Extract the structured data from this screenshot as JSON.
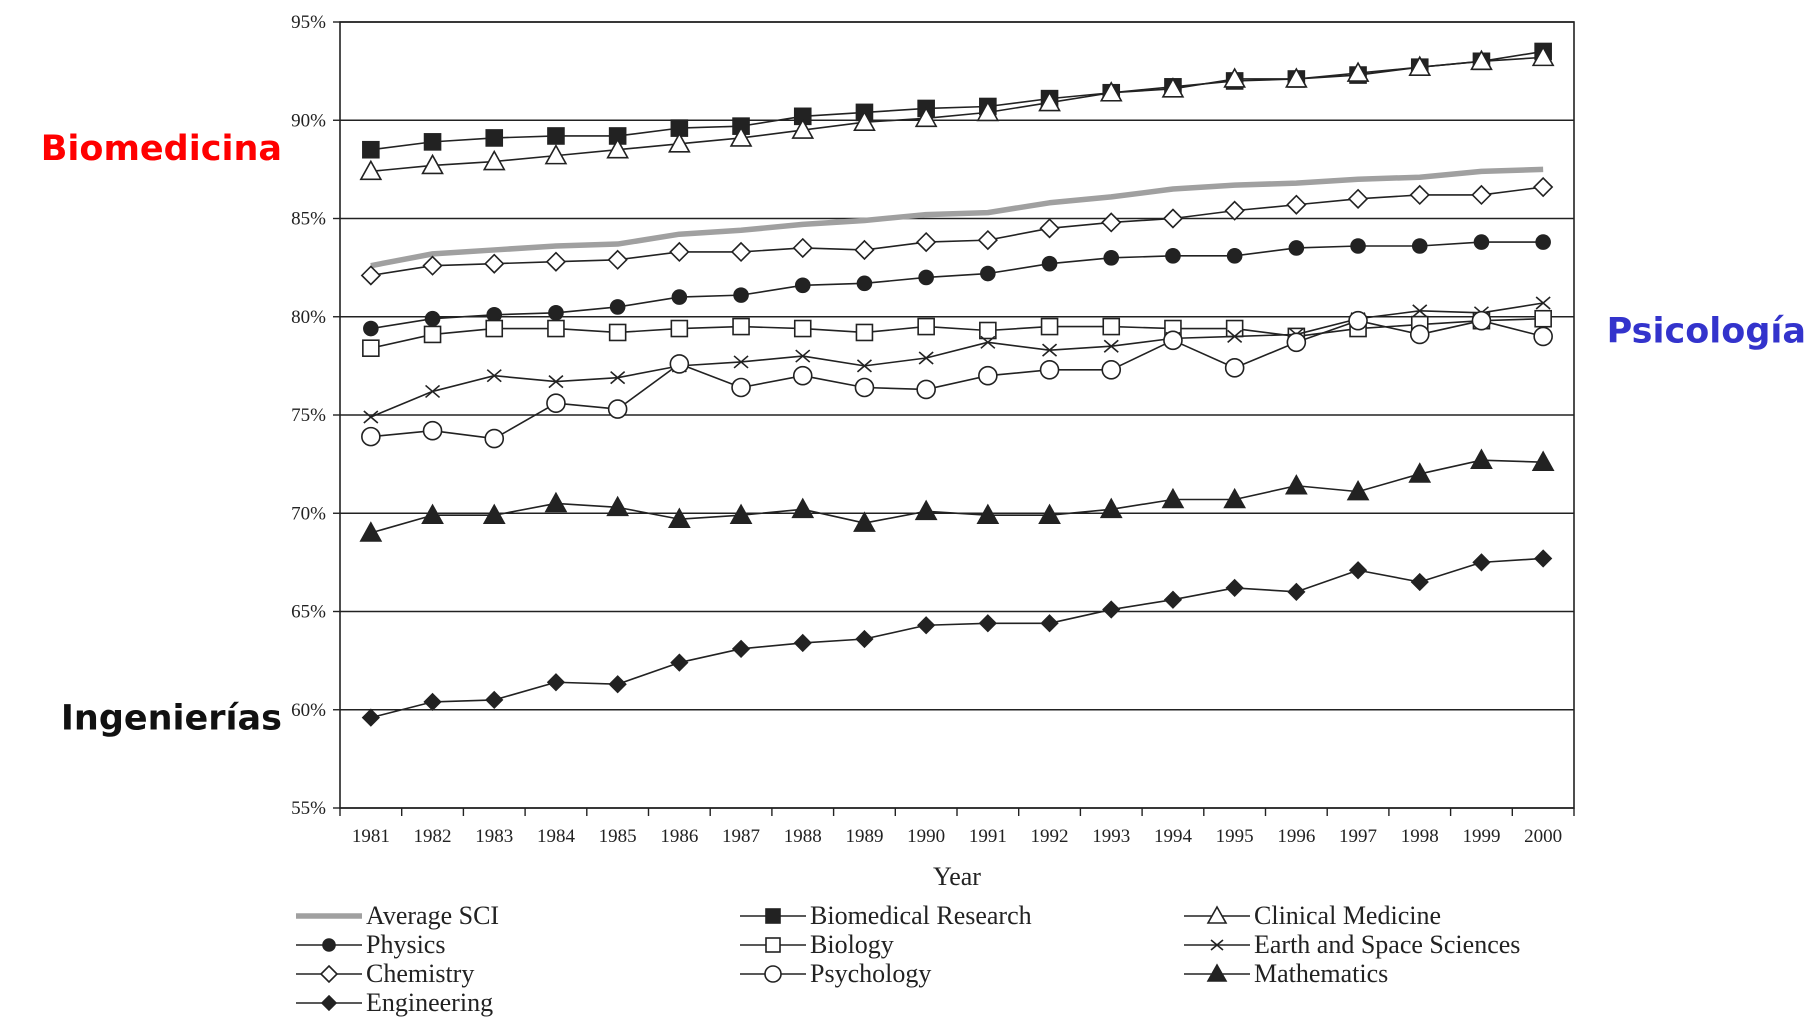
{
  "chart_data": {
    "type": "line",
    "xlabel": "Year",
    "ylabel": "",
    "ylim": [
      55,
      95
    ],
    "yticks": [
      55,
      60,
      65,
      70,
      75,
      80,
      85,
      90,
      95
    ],
    "ytick_labels": [
      "55%",
      "60%",
      "65%",
      "70%",
      "75%",
      "80%",
      "85%",
      "90%",
      "95%"
    ],
    "grid": "horizontal",
    "legend_placement": "bottom",
    "x": [
      1981,
      1982,
      1983,
      1984,
      1985,
      1986,
      1987,
      1988,
      1989,
      1990,
      1991,
      1992,
      1993,
      1994,
      1995,
      1996,
      1997,
      1998,
      1999,
      2000
    ],
    "xtick_labels": [
      "1981",
      "1982",
      "1983",
      "1984",
      "1985",
      "1986",
      "1987",
      "1988",
      "1989",
      "1990",
      "1991",
      "1992",
      "1993",
      "1994",
      "1995",
      "1996",
      "1997",
      "1998",
      "1999",
      "2000"
    ],
    "series": [
      {
        "name": "Average SCI",
        "marker": "none",
        "color": "#a0a0a0",
        "values": [
          82.6,
          83.2,
          83.4,
          83.6,
          83.7,
          84.2,
          84.4,
          84.7,
          84.9,
          85.2,
          85.3,
          85.8,
          86.1,
          86.5,
          86.7,
          86.8,
          87.0,
          87.1,
          87.4,
          87.5
        ]
      },
      {
        "name": "Biomedical Research",
        "marker": "square-filled",
        "color": "#222222",
        "values": [
          88.5,
          88.9,
          89.1,
          89.2,
          89.2,
          89.6,
          89.7,
          90.2,
          90.4,
          90.6,
          90.7,
          91.1,
          91.4,
          91.7,
          92.0,
          92.1,
          92.3,
          92.7,
          93.0,
          93.5
        ]
      },
      {
        "name": "Clinical Medicine",
        "marker": "triangle-open",
        "color": "#222222",
        "values": [
          87.4,
          87.7,
          87.9,
          88.2,
          88.5,
          88.8,
          89.1,
          89.5,
          89.9,
          90.1,
          90.4,
          90.9,
          91.4,
          91.6,
          92.1,
          92.1,
          92.4,
          92.7,
          93.0,
          93.2
        ]
      },
      {
        "name": "Physics",
        "marker": "circle-filled",
        "color": "#222222",
        "values": [
          79.4,
          79.9,
          80.1,
          80.2,
          80.5,
          81.0,
          81.1,
          81.6,
          81.7,
          82.0,
          82.2,
          82.7,
          83.0,
          83.1,
          83.1,
          83.5,
          83.6,
          83.6,
          83.8,
          83.8
        ]
      },
      {
        "name": "Biology",
        "marker": "square-open",
        "color": "#222222",
        "values": [
          78.4,
          79.1,
          79.4,
          79.4,
          79.2,
          79.4,
          79.5,
          79.4,
          79.2,
          79.5,
          79.3,
          79.5,
          79.5,
          79.4,
          79.4,
          79.0,
          79.4,
          79.6,
          79.8,
          79.9
        ]
      },
      {
        "name": "Earth and Space Sciences",
        "marker": "x",
        "color": "#222222",
        "values": [
          74.9,
          76.2,
          77.0,
          76.7,
          76.9,
          77.5,
          77.7,
          78.0,
          77.5,
          77.9,
          78.7,
          78.3,
          78.5,
          78.9,
          79.0,
          79.1,
          79.9,
          80.3,
          80.2,
          80.7
        ]
      },
      {
        "name": "Chemistry",
        "marker": "diamond-open",
        "color": "#222222",
        "values": [
          82.1,
          82.6,
          82.7,
          82.8,
          82.9,
          83.3,
          83.3,
          83.5,
          83.4,
          83.8,
          83.9,
          84.5,
          84.8,
          85.0,
          85.4,
          85.7,
          86.0,
          86.2,
          86.2,
          86.6
        ]
      },
      {
        "name": "Psychology",
        "marker": "circle-open",
        "color": "#222222",
        "values": [
          73.9,
          74.2,
          73.8,
          75.6,
          75.3,
          77.6,
          76.4,
          77.0,
          76.4,
          76.3,
          77.0,
          77.3,
          77.3,
          78.8,
          77.4,
          78.7,
          79.8,
          79.1,
          79.8,
          79.0
        ]
      },
      {
        "name": "Mathematics",
        "marker": "triangle-filled",
        "color": "#222222",
        "values": [
          69.0,
          69.9,
          69.9,
          70.5,
          70.3,
          69.7,
          69.9,
          70.2,
          69.5,
          70.1,
          69.9,
          69.9,
          70.2,
          70.7,
          70.7,
          71.4,
          71.1,
          72.0,
          72.7,
          72.6
        ]
      },
      {
        "name": "Engineering",
        "marker": "diamond-filled",
        "color": "#222222",
        "values": [
          59.6,
          60.4,
          60.5,
          61.4,
          61.3,
          62.4,
          63.1,
          63.4,
          63.6,
          64.3,
          64.4,
          64.4,
          65.1,
          65.6,
          66.2,
          66.0,
          67.1,
          66.5,
          67.5,
          67.7
        ]
      }
    ],
    "annotations": [
      {
        "text": "Biomedicina",
        "color": "#ff0000",
        "side": "left",
        "near_value": 88.6
      },
      {
        "text": "Psicología",
        "color": "#3333cc",
        "side": "right",
        "near_value": 79.3
      },
      {
        "text": "Ingenierías",
        "color": "#111111",
        "side": "left",
        "near_value": 59.6
      }
    ]
  }
}
